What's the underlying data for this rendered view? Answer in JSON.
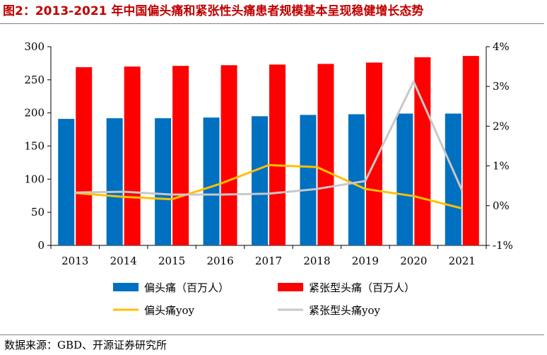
{
  "title": "图2：2013-2021 年中国偏头痛和紧张性头痛患者规模基本呈现稳健增长态势",
  "source": "数据来源：GBD、开源证券研究所",
  "chart_data": {
    "type": "bar",
    "categories": [
      "2013",
      "2014",
      "2015",
      "2016",
      "2017",
      "2018",
      "2019",
      "2020",
      "2021"
    ],
    "y_left": {
      "ticks": [
        "0",
        "50",
        "100",
        "150",
        "200",
        "250",
        "300"
      ],
      "range": [
        0,
        300
      ]
    },
    "y_right": {
      "ticks": [
        "-1%",
        "0%",
        "1%",
        "2%",
        "3%",
        "4%"
      ],
      "range": [
        -1,
        4
      ]
    },
    "grid": false,
    "legend_position": "bottom",
    "bar_series": [
      {
        "name": "偏头痛（百万人）",
        "color": "#0070c0",
        "values": [
          191,
          192,
          192,
          193,
          195,
          197,
          198,
          199,
          199
        ]
      },
      {
        "name": "紧张型头痛（百万人）",
        "color": "#ff0000",
        "values": [
          269,
          270,
          271,
          272,
          273,
          274,
          276,
          284,
          286
        ]
      }
    ],
    "line_series": [
      {
        "name": "偏头痛yoy",
        "color": "#ffc000",
        "values": [
          0.32,
          0.22,
          0.16,
          0.55,
          1.02,
          0.97,
          0.42,
          0.24,
          -0.07
        ]
      },
      {
        "name": "紧张型头痛yoy",
        "color": "#c8c8c8",
        "values": [
          0.33,
          0.35,
          0.28,
          0.28,
          0.3,
          0.42,
          0.62,
          3.12,
          0.38
        ]
      }
    ]
  }
}
